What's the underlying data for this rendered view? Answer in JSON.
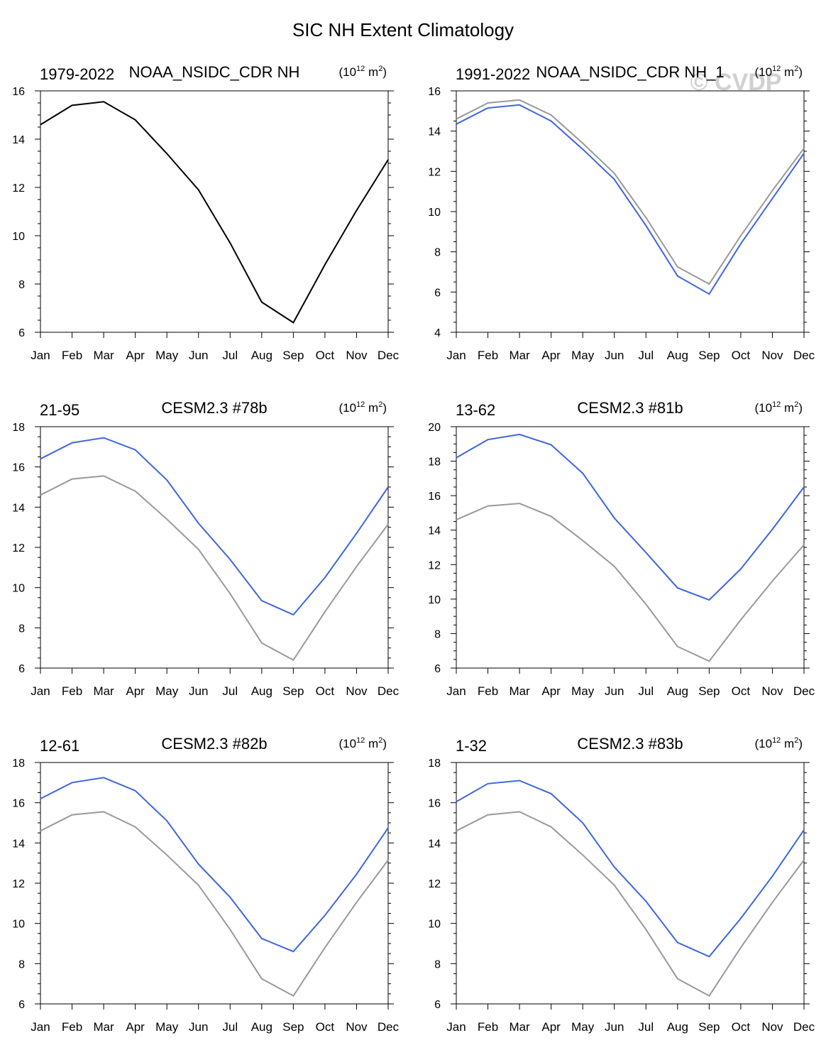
{
  "figure_title": "SIC NH Extent Climatology",
  "watermark": "© CVDP",
  "units_label": {
    "base": "(10",
    "exp": "12",
    "unit": " m",
    "unit_exp": "2",
    "close": ")"
  },
  "colors": {
    "obs": "#000000",
    "model": "#3d66e0",
    "reference": "#999999"
  },
  "chart_data": [
    {
      "type": "line",
      "left_title": "1979-2022",
      "center_title": "NOAA_NSIDC_CDR NH",
      "categories": [
        "Jan",
        "Feb",
        "Mar",
        "Apr",
        "May",
        "Jun",
        "Jul",
        "Aug",
        "Sep",
        "Oct",
        "Nov",
        "Dec"
      ],
      "ylim": [
        6,
        16
      ],
      "yticks": [
        6,
        8,
        10,
        12,
        14,
        16
      ],
      "series": [
        {
          "name": "NOAA_NSIDC_CDR NH",
          "role": "obs",
          "values": [
            14.6,
            15.4,
            15.55,
            14.8,
            13.4,
            11.9,
            9.7,
            7.25,
            6.4,
            8.8,
            11.05,
            13.15
          ]
        }
      ]
    },
    {
      "type": "line",
      "left_title": "1991-2022",
      "center_title": "NOAA_NSIDC_CDR NH_1",
      "categories": [
        "Jan",
        "Feb",
        "Mar",
        "Apr",
        "May",
        "Jun",
        "Jul",
        "Aug",
        "Sep",
        "Oct",
        "Nov",
        "Dec"
      ],
      "ylim": [
        4,
        16
      ],
      "yticks": [
        4,
        6,
        8,
        10,
        12,
        14,
        16
      ],
      "series": [
        {
          "name": "NOAA_NSIDC_CDR NH",
          "role": "reference",
          "values": [
            14.6,
            15.4,
            15.55,
            14.8,
            13.4,
            11.9,
            9.7,
            7.25,
            6.4,
            8.8,
            11.05,
            13.15
          ]
        },
        {
          "name": "NOAA_NSIDC_CDR NH_1",
          "role": "model",
          "values": [
            14.35,
            15.15,
            15.3,
            14.5,
            13.1,
            11.6,
            9.3,
            6.8,
            5.9,
            8.4,
            10.65,
            12.9
          ]
        }
      ]
    },
    {
      "type": "line",
      "left_title": "21-95",
      "center_title": "CESM2.3 #78b",
      "categories": [
        "Jan",
        "Feb",
        "Mar",
        "Apr",
        "May",
        "Jun",
        "Jul",
        "Aug",
        "Sep",
        "Oct",
        "Nov",
        "Dec"
      ],
      "ylim": [
        6,
        18
      ],
      "yticks": [
        6,
        8,
        10,
        12,
        14,
        16,
        18
      ],
      "series": [
        {
          "name": "NOAA_NSIDC_CDR NH",
          "role": "reference",
          "values": [
            14.6,
            15.4,
            15.55,
            14.8,
            13.4,
            11.9,
            9.7,
            7.25,
            6.4,
            8.8,
            11.05,
            13.15
          ]
        },
        {
          "name": "CESM2.3 #78b",
          "role": "model",
          "values": [
            16.4,
            17.2,
            17.45,
            16.85,
            15.35,
            13.2,
            11.4,
            9.35,
            8.65,
            10.5,
            12.7,
            15.0
          ]
        }
      ]
    },
    {
      "type": "line",
      "left_title": "13-62",
      "center_title": "CESM2.3 #81b",
      "categories": [
        "Jan",
        "Feb",
        "Mar",
        "Apr",
        "May",
        "Jun",
        "Jul",
        "Aug",
        "Sep",
        "Oct",
        "Nov",
        "Dec"
      ],
      "ylim": [
        6,
        20
      ],
      "yticks": [
        6,
        8,
        10,
        12,
        14,
        16,
        18,
        20
      ],
      "series": [
        {
          "name": "NOAA_NSIDC_CDR NH",
          "role": "reference",
          "values": [
            14.6,
            15.4,
            15.55,
            14.8,
            13.4,
            11.9,
            9.7,
            7.25,
            6.4,
            8.8,
            11.05,
            13.15
          ]
        },
        {
          "name": "CESM2.3 #81b",
          "role": "model",
          "values": [
            18.2,
            19.25,
            19.55,
            18.95,
            17.3,
            14.7,
            12.7,
            10.65,
            9.95,
            11.75,
            14.05,
            16.5
          ]
        }
      ]
    },
    {
      "type": "line",
      "left_title": "12-61",
      "center_title": "CESM2.3 #82b",
      "categories": [
        "Jan",
        "Feb",
        "Mar",
        "Apr",
        "May",
        "Jun",
        "Jul",
        "Aug",
        "Sep",
        "Oct",
        "Nov",
        "Dec"
      ],
      "ylim": [
        6,
        18
      ],
      "yticks": [
        6,
        8,
        10,
        12,
        14,
        16,
        18
      ],
      "series": [
        {
          "name": "NOAA_NSIDC_CDR NH",
          "role": "reference",
          "values": [
            14.6,
            15.4,
            15.55,
            14.8,
            13.4,
            11.9,
            9.7,
            7.25,
            6.4,
            8.8,
            11.05,
            13.15
          ]
        },
        {
          "name": "CESM2.3 #82b",
          "role": "model",
          "values": [
            16.2,
            17.0,
            17.25,
            16.6,
            15.1,
            12.95,
            11.3,
            9.25,
            8.6,
            10.4,
            12.45,
            14.75
          ]
        }
      ]
    },
    {
      "type": "line",
      "left_title": "1-32",
      "center_title": "CESM2.3 #83b",
      "categories": [
        "Jan",
        "Feb",
        "Mar",
        "Apr",
        "May",
        "Jun",
        "Jul",
        "Aug",
        "Sep",
        "Oct",
        "Nov",
        "Dec"
      ],
      "ylim": [
        6,
        18
      ],
      "yticks": [
        6,
        8,
        10,
        12,
        14,
        16,
        18
      ],
      "series": [
        {
          "name": "NOAA_NSIDC_CDR NH",
          "role": "reference",
          "values": [
            14.6,
            15.4,
            15.55,
            14.8,
            13.4,
            11.9,
            9.7,
            7.25,
            6.4,
            8.8,
            11.05,
            13.15
          ]
        },
        {
          "name": "CESM2.3 #83b",
          "role": "model",
          "values": [
            16.05,
            16.95,
            17.1,
            16.45,
            15.0,
            12.8,
            11.1,
            9.05,
            8.35,
            10.25,
            12.35,
            14.65
          ]
        }
      ]
    }
  ]
}
